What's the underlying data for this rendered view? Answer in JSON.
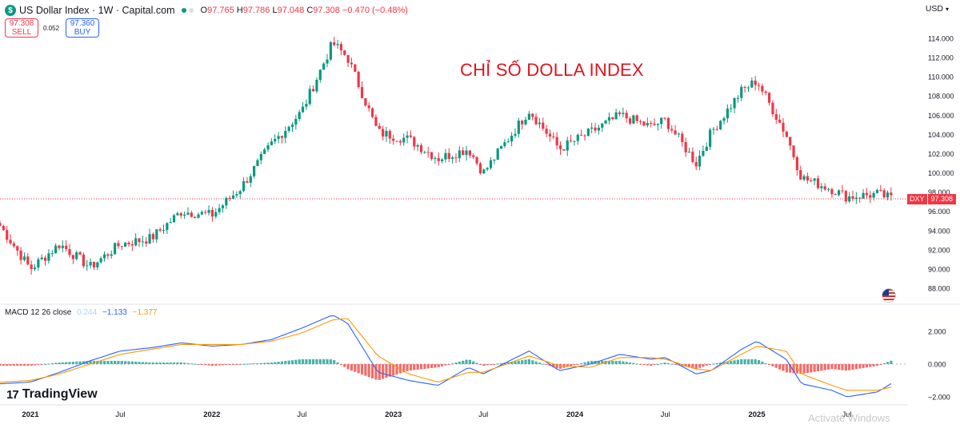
{
  "header": {
    "symbol_badge": "$",
    "title": "US Dollar Index · 1W · Capital.com",
    "ohlc": {
      "o_label": "O",
      "o": "97.765",
      "h_label": "H",
      "h": "97.786",
      "l_label": "L",
      "l": "97.048",
      "c_label": "C",
      "c": "97.308",
      "change": "−0.470 (−0.48%)"
    }
  },
  "trade": {
    "sell_price": "97.308",
    "sell_label": "SELL",
    "spread": "0.052",
    "buy_price": "97.360",
    "buy_label": "BUY"
  },
  "currency": "USD",
  "overlay_title": "CHỈ SỐ DOLLA INDEX",
  "last_price": {
    "symbol": "DXY",
    "value": "97.308"
  },
  "macd": {
    "label": "MACD 12 26 close",
    "hist_value": "0.244",
    "macd_value": "−1.133",
    "signal_value": "−1.377"
  },
  "logo": "TradingView",
  "watermark": "Activate Windows",
  "colors": {
    "up": "#089981",
    "down": "#f23645",
    "macd_line": "#2962ff",
    "signal_line": "#ff9800",
    "hist_pos": "#26a69a",
    "hist_neg": "#ef5350"
  },
  "chart_data": [
    {
      "type": "candlestick",
      "title": "US Dollar Index · 1W · Capital.com",
      "x_tick_labels": [
        "2021",
        "Jul",
        "2022",
        "Jul",
        "2023",
        "Jul",
        "2024",
        "Jul",
        "2025",
        "Jul"
      ],
      "y_tick_labels": [
        "88.000",
        "90.000",
        "92.000",
        "94.000",
        "96.000",
        "98.000",
        "100.000",
        "102.000",
        "104.000",
        "106.000",
        "108.000",
        "110.000",
        "112.000",
        "114.000"
      ],
      "ylim": [
        86.5,
        116.5
      ],
      "grid": false,
      "close_series": {
        "dates": [
          "2020-11",
          "2021-01",
          "2021-03",
          "2021-05",
          "2021-07",
          "2021-09",
          "2021-11",
          "2022-01",
          "2022-03",
          "2022-05",
          "2022-07",
          "2022-09",
          "2022-10",
          "2022-12",
          "2023-02",
          "2023-04",
          "2023-06",
          "2023-07",
          "2023-10",
          "2023-12",
          "2024-02",
          "2024-04",
          "2024-06",
          "2024-07",
          "2024-09",
          "2024-10",
          "2024-12",
          "2025-01",
          "2025-03",
          "2025-04",
          "2025-06",
          "2025-07",
          "2025-09",
          "2025-10"
        ],
        "values": [
          94.5,
          90.0,
          92.6,
          90.2,
          92.6,
          93.2,
          96.0,
          95.6,
          98.5,
          103.0,
          106.4,
          113.5,
          112.0,
          104.2,
          103.5,
          101.5,
          102.5,
          100.0,
          106.5,
          102.5,
          104.2,
          106.0,
          104.8,
          105.5,
          101.0,
          104.2,
          108.5,
          109.6,
          104.0,
          99.5,
          98.3,
          97.5,
          97.8,
          97.3
        ]
      },
      "last_price": 97.308
    },
    {
      "type": "line",
      "title": "MACD 12 26 close",
      "y_tick_labels": [
        "2.000",
        "0.000",
        "−2.000"
      ],
      "ylim": [
        -2.6,
        3.0
      ],
      "series": [
        {
          "name": "MACD",
          "values": [
            -1.2,
            -1.1,
            -0.5,
            0.2,
            0.8,
            1.0,
            1.3,
            1.1,
            1.2,
            1.5,
            2.2,
            3.0,
            2.5,
            -0.5,
            -1.0,
            -1.3,
            -0.2,
            -0.6,
            0.8,
            -0.4,
            0.0,
            0.6,
            0.3,
            0.4,
            -0.6,
            -0.4,
            0.9,
            1.4,
            0.3,
            -1.2,
            -1.6,
            -2.0,
            -1.7,
            -1.133
          ]
        },
        {
          "name": "Signal",
          "values": [
            -1.1,
            -1.0,
            -0.6,
            0.0,
            0.6,
            0.9,
            1.2,
            1.2,
            1.2,
            1.4,
            1.9,
            2.7,
            2.8,
            0.5,
            -0.6,
            -1.1,
            -0.5,
            -0.5,
            0.5,
            -0.1,
            -0.2,
            0.4,
            0.4,
            0.3,
            -0.3,
            -0.4,
            0.6,
            1.1,
            0.8,
            -0.6,
            -1.3,
            -1.6,
            -1.6,
            -1.377
          ]
        },
        {
          "name": "Histogram",
          "values": [
            -0.1,
            -0.1,
            0.1,
            0.2,
            0.2,
            0.1,
            0.1,
            -0.1,
            0.0,
            0.1,
            0.3,
            0.3,
            -0.3,
            -1.0,
            -0.4,
            -0.2,
            0.3,
            -0.1,
            0.3,
            -0.3,
            0.2,
            0.2,
            -0.1,
            0.1,
            -0.3,
            0.0,
            0.3,
            0.3,
            -0.5,
            -0.6,
            -0.3,
            -0.4,
            -0.1,
            0.244
          ]
        }
      ]
    }
  ]
}
